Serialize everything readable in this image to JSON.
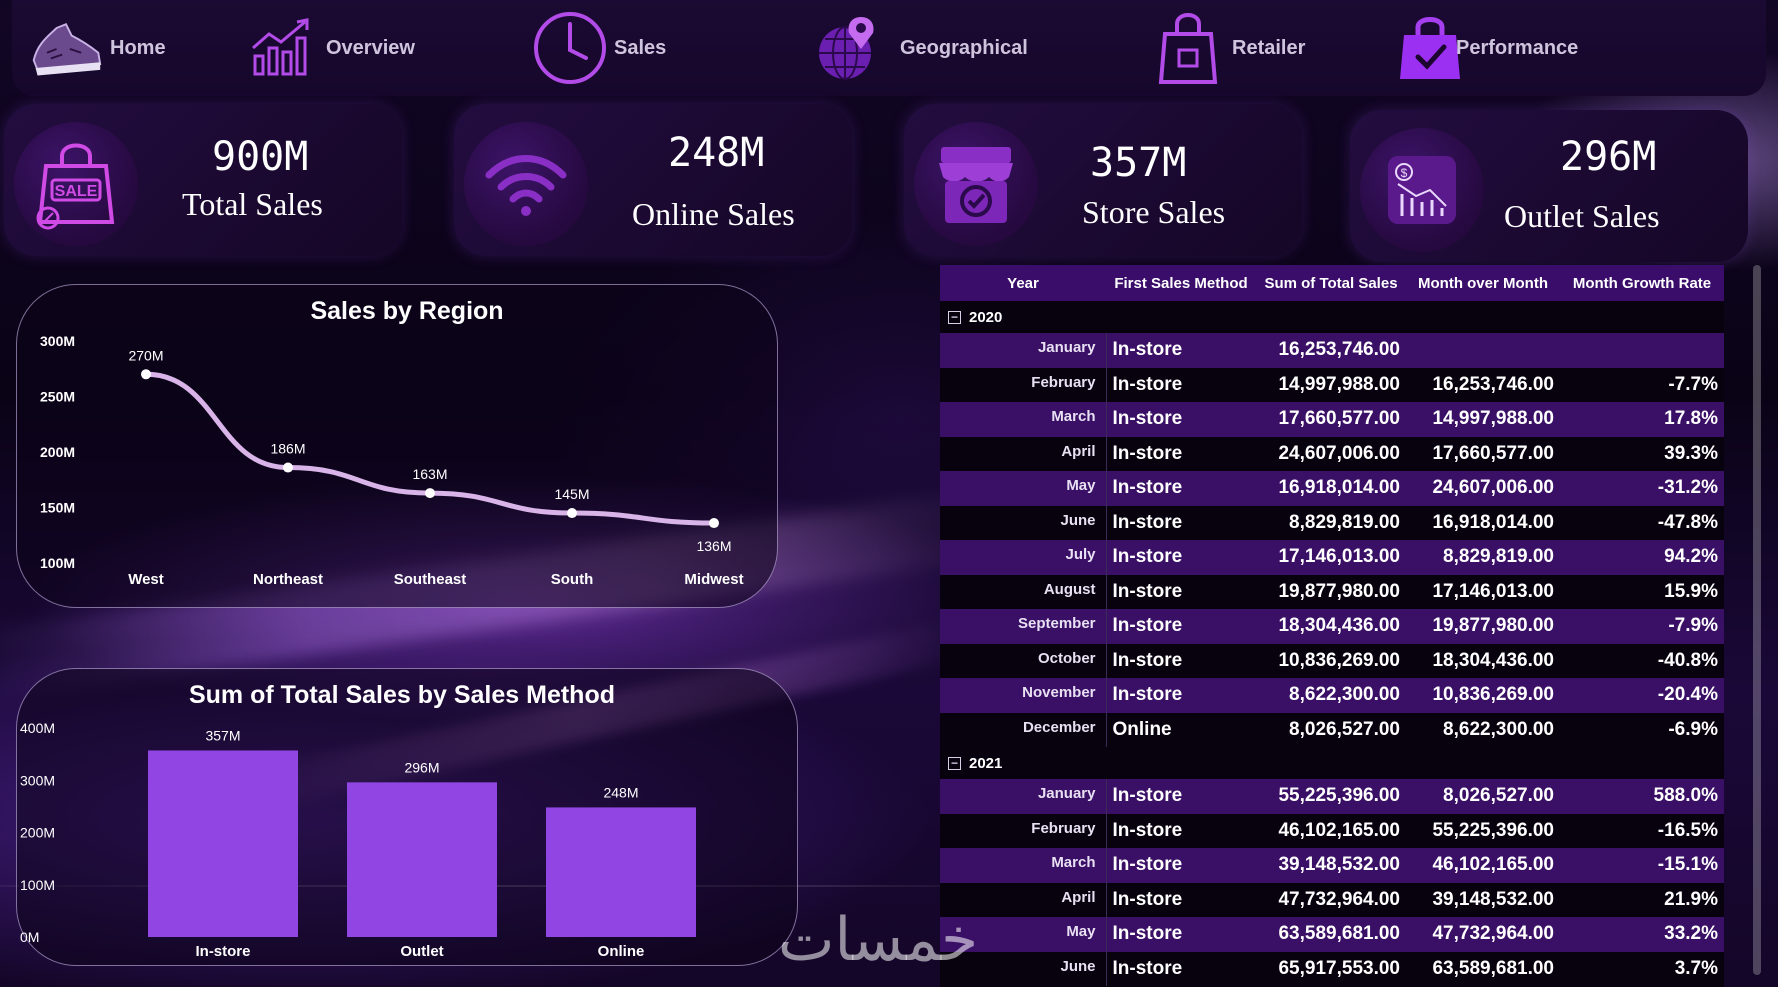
{
  "nav": {
    "items": [
      {
        "label": "Home",
        "icon": "sneaker-icon"
      },
      {
        "label": "Overview",
        "icon": "bar-chart-icon"
      },
      {
        "label": "Sales",
        "icon": "clock-icon"
      },
      {
        "label": "Geographical",
        "icon": "globe-pin-icon"
      },
      {
        "label": "Retailer",
        "icon": "shopping-bag-icon"
      },
      {
        "label": "Performance",
        "icon": "bag-check-icon"
      }
    ]
  },
  "kpis": [
    {
      "value": "900M",
      "label": "Total Sales",
      "icon": "sale-bag-icon"
    },
    {
      "value": "248M",
      "label": "Online Sales",
      "icon": "wifi-icon"
    },
    {
      "value": "357M",
      "label": "Store Sales",
      "icon": "store-icon"
    },
    {
      "value": "296M",
      "label": "Outlet Sales",
      "icon": "decline-chart-icon"
    }
  ],
  "chart_data": [
    {
      "type": "line",
      "title": "Sales by Region",
      "categories": [
        "West",
        "Northeast",
        "Southeast",
        "South",
        "Midwest"
      ],
      "values": [
        270,
        186,
        163,
        145,
        136
      ],
      "data_labels": [
        "270M",
        "186M",
        "163M",
        "145M",
        "136M"
      ],
      "y_ticks": [
        100,
        150,
        200,
        250,
        300
      ],
      "y_tick_labels": [
        "100M",
        "150M",
        "200M",
        "250M",
        "300M"
      ],
      "ylim": [
        100,
        300
      ],
      "xlabel": "",
      "ylabel": "",
      "series_color": "#d8b4e8"
    },
    {
      "type": "bar",
      "title": "Sum of Total Sales by Sales Method",
      "categories": [
        "In-store",
        "Outlet",
        "Online"
      ],
      "values": [
        357,
        296,
        248
      ],
      "data_labels": [
        "357M",
        "296M",
        "248M"
      ],
      "y_ticks": [
        0,
        100,
        200,
        300,
        400
      ],
      "y_tick_labels": [
        "0M",
        "100M",
        "200M",
        "300M",
        "400M"
      ],
      "ylim": [
        0,
        400
      ],
      "xlabel": "",
      "ylabel": "",
      "bar_color": "#9146e3"
    }
  ],
  "table": {
    "headers": [
      "Year",
      "First Sales Method",
      "Sum of Total Sales",
      "Month over Month",
      "Month Growth Rate"
    ],
    "groups": [
      {
        "year": "2020",
        "rows": [
          {
            "month": "January",
            "method": "In-store",
            "total": "16,253,746.00",
            "mom": "",
            "growth": ""
          },
          {
            "month": "February",
            "method": "In-store",
            "total": "14,997,988.00",
            "mom": "16,253,746.00",
            "growth": "-7.7%"
          },
          {
            "month": "March",
            "method": "In-store",
            "total": "17,660,577.00",
            "mom": "14,997,988.00",
            "growth": "17.8%"
          },
          {
            "month": "April",
            "method": "In-store",
            "total": "24,607,006.00",
            "mom": "17,660,577.00",
            "growth": "39.3%"
          },
          {
            "month": "May",
            "method": "In-store",
            "total": "16,918,014.00",
            "mom": "24,607,006.00",
            "growth": "-31.2%"
          },
          {
            "month": "June",
            "method": "In-store",
            "total": "8,829,819.00",
            "mom": "16,918,014.00",
            "growth": "-47.8%"
          },
          {
            "month": "July",
            "method": "In-store",
            "total": "17,146,013.00",
            "mom": "8,829,819.00",
            "growth": "94.2%"
          },
          {
            "month": "August",
            "method": "In-store",
            "total": "19,877,980.00",
            "mom": "17,146,013.00",
            "growth": "15.9%"
          },
          {
            "month": "September",
            "method": "In-store",
            "total": "18,304,436.00",
            "mom": "19,877,980.00",
            "growth": "-7.9%"
          },
          {
            "month": "October",
            "method": "In-store",
            "total": "10,836,269.00",
            "mom": "18,304,436.00",
            "growth": "-40.8%"
          },
          {
            "month": "November",
            "method": "In-store",
            "total": "8,622,300.00",
            "mom": "10,836,269.00",
            "growth": "-20.4%"
          },
          {
            "month": "December",
            "method": "Online",
            "total": "8,026,527.00",
            "mom": "8,622,300.00",
            "growth": "-6.9%"
          }
        ]
      },
      {
        "year": "2021",
        "rows": [
          {
            "month": "January",
            "method": "In-store",
            "total": "55,225,396.00",
            "mom": "8,026,527.00",
            "growth": "588.0%"
          },
          {
            "month": "February",
            "method": "In-store",
            "total": "46,102,165.00",
            "mom": "55,225,396.00",
            "growth": "-16.5%"
          },
          {
            "month": "March",
            "method": "In-store",
            "total": "39,148,532.00",
            "mom": "46,102,165.00",
            "growth": "-15.1%"
          },
          {
            "month": "April",
            "method": "In-store",
            "total": "47,732,964.00",
            "mom": "39,148,532.00",
            "growth": "21.9%"
          },
          {
            "month": "May",
            "method": "In-store",
            "total": "63,589,681.00",
            "mom": "47,732,964.00",
            "growth": "33.2%"
          },
          {
            "month": "June",
            "method": "In-store",
            "total": "65,917,553.00",
            "mom": "63,589,681.00",
            "growth": "3.7%"
          }
        ]
      }
    ]
  },
  "watermark": "خمسات",
  "colors": {
    "accent": "#9146e3",
    "header_row": "#3a0d6a",
    "band_row": "#3a0f66"
  }
}
